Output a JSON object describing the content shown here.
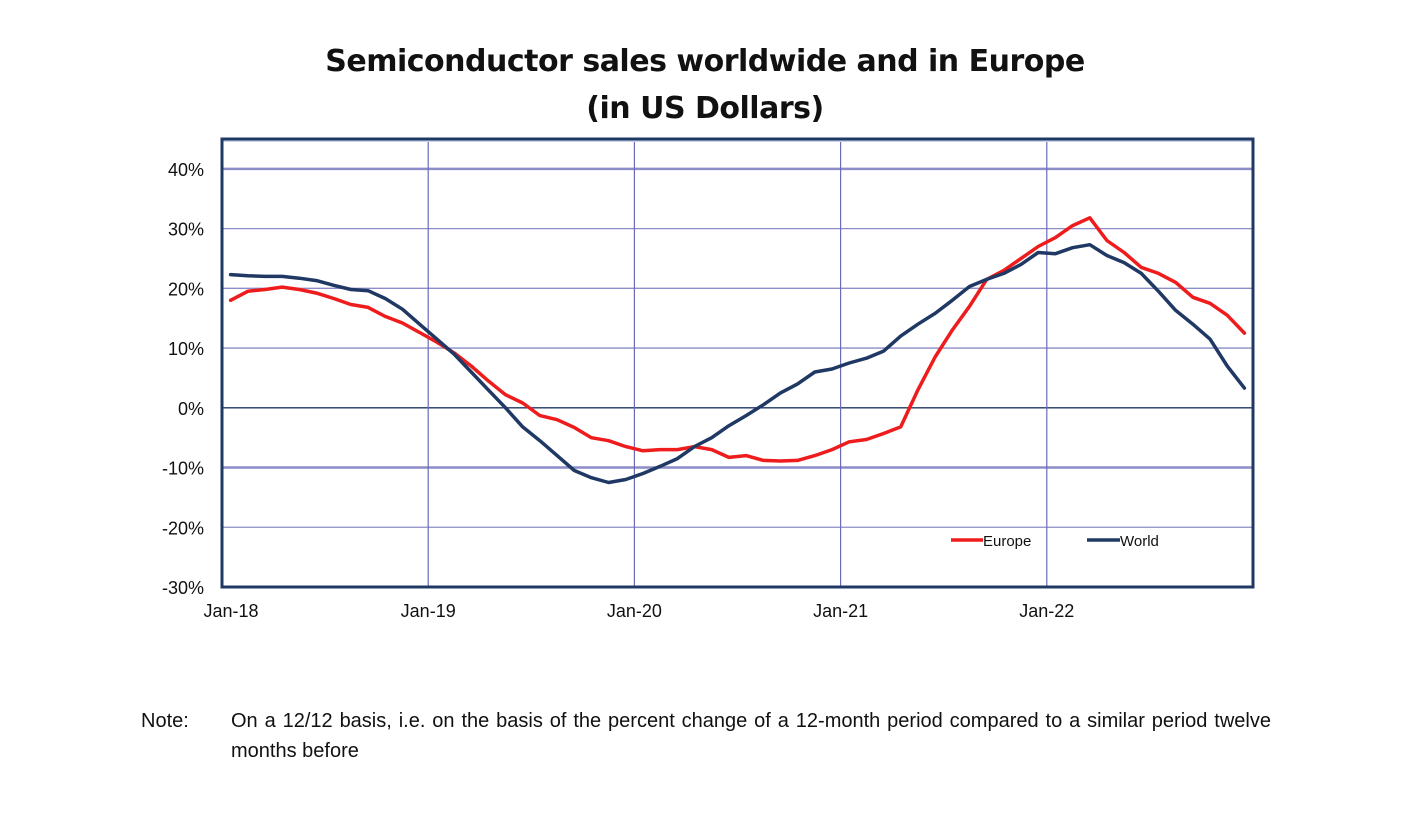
{
  "chart_data": {
    "type": "line",
    "title": "Semiconductor sales worldwide and in Europe",
    "subtitle": "(in US Dollars)",
    "xlabel": "",
    "ylabel": "",
    "x_unit": "months since Jan-18",
    "xlim": [
      0,
      60
    ],
    "ylim": [
      -30,
      45
    ],
    "x_ticks": [
      {
        "label": "Jan-18",
        "month": 0
      },
      {
        "label": "Jan-19",
        "month": 12
      },
      {
        "label": "Jan-20",
        "month": 24
      },
      {
        "label": "Jan-21",
        "month": 36
      },
      {
        "label": "Jan-22",
        "month": 48
      }
    ],
    "y_ticks": [
      {
        "label": "40%",
        "value": 40
      },
      {
        "label": "30%",
        "value": 30
      },
      {
        "label": "20%",
        "value": 20
      },
      {
        "label": "10%",
        "value": 10
      },
      {
        "label": "0%",
        "value": 0
      },
      {
        "label": "-10%",
        "value": -10
      },
      {
        "label": "-20%",
        "value": -20
      },
      {
        "label": "-30%",
        "value": -30
      }
    ],
    "grid": true,
    "legend_position": "bottom-right",
    "x": [
      0.5,
      1.5,
      2.5,
      3.5,
      4.5,
      5.5,
      6.5,
      7.5,
      8.5,
      9.5,
      10.5,
      11.5,
      12.5,
      13.5,
      14.5,
      15.5,
      16.5,
      17.5,
      18.5,
      19.5,
      20.5,
      21.5,
      22.5,
      23.5,
      24.5,
      25.5,
      26.5,
      27.5,
      28.5,
      29.5,
      30.5,
      31.5,
      32.5,
      33.5,
      34.5,
      35.5,
      36.5,
      37.5,
      38.5,
      39.5,
      40.5,
      41.5,
      42.5,
      43.5,
      44.5,
      45.5,
      46.5,
      47.5,
      48.5,
      49.5,
      50.5,
      51.5,
      52.5,
      53.5,
      54.5,
      55.5,
      56.5,
      57.5,
      58.5,
      59.5
    ],
    "series": [
      {
        "name": "Europe",
        "color": "#ee1c1c",
        "values": [
          18.0,
          19.5,
          19.8,
          20.2,
          19.8,
          19.2,
          18.3,
          17.3,
          16.8,
          15.3,
          14.2,
          12.6,
          11.0,
          9.2,
          7.0,
          4.5,
          2.2,
          0.8,
          -1.3,
          -2.0,
          -3.3,
          -5.0,
          -5.5,
          -6.5,
          -7.2,
          -7.0,
          -7.0,
          -6.5,
          -7.0,
          -8.3,
          -8.0,
          -8.8,
          -8.9,
          -8.8,
          -8.0,
          -7.0,
          -5.7,
          -5.3,
          -4.3,
          -3.2,
          3.0,
          8.5,
          13.0,
          17.0,
          21.5,
          23.0,
          25.0,
          27.0,
          28.5,
          30.5,
          31.8,
          28.0,
          26.0,
          23.5,
          22.5,
          21.0,
          18.5,
          17.5,
          15.5,
          12.5
        ]
      },
      {
        "name": "World",
        "color": "#1f3864",
        "values": [
          22.3,
          22.1,
          22.0,
          22.0,
          21.7,
          21.3,
          20.5,
          19.8,
          19.6,
          18.3,
          16.5,
          14.0,
          11.5,
          9.0,
          6.0,
          3.0,
          0.0,
          -3.2,
          -5.5,
          -8.0,
          -10.5,
          -11.7,
          -12.5,
          -12.0,
          -11.0,
          -9.8,
          -8.5,
          -6.5,
          -5.0,
          -3.0,
          -1.3,
          0.5,
          2.5,
          4.0,
          6.0,
          6.5,
          7.5,
          8.3,
          9.5,
          12.0,
          14.0,
          15.8,
          18.0,
          20.3,
          21.5,
          22.5,
          24.0,
          26.0,
          25.8,
          26.8,
          27.3,
          25.5,
          24.3,
          22.5,
          19.5,
          16.3,
          14.0,
          11.5,
          7.0,
          3.3
        ]
      }
    ]
  },
  "legend": {
    "europe_label": "Europe",
    "world_label": "World"
  },
  "note": {
    "label": "Note:",
    "text": "On a 12/12 basis, i.e. on the basis of the percent change of a 12-month period compared to a similar period twelve months before"
  }
}
